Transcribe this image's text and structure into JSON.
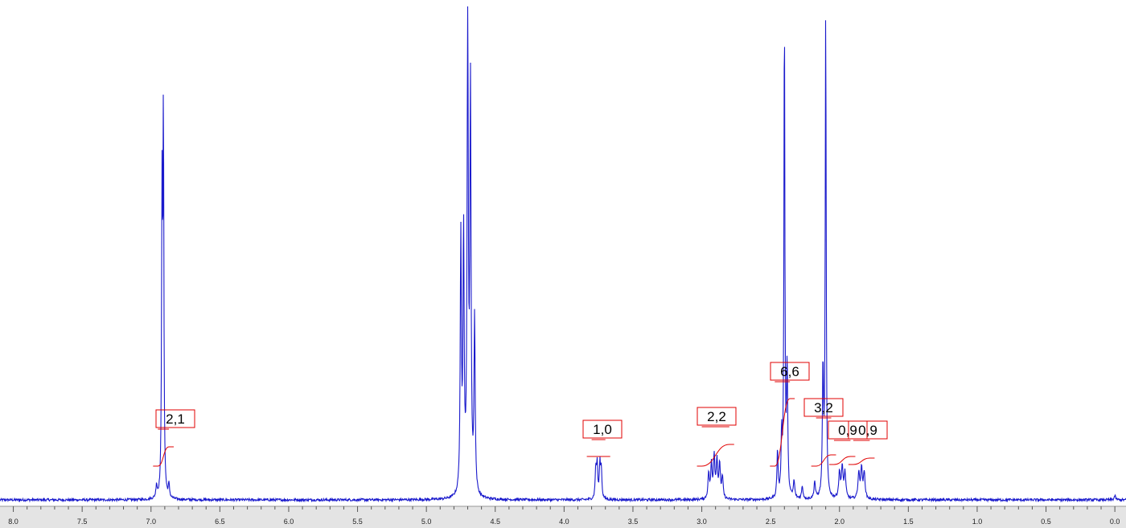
{
  "chart_data": {
    "type": "line",
    "xlim": [
      8.1,
      -0.05
    ],
    "reversed_x_axis": true,
    "grid": false,
    "colors": {
      "spectrum": "#1a1acc",
      "integral": "#e00000",
      "axis_bg": "#e4e4e4"
    },
    "x_ticks": [
      "8.0",
      "7.5",
      "7.0",
      "6.5",
      "6.0",
      "5.5",
      "5.0",
      "4.5",
      "4.0",
      "3.5",
      "3.0",
      "2.5",
      "2.0",
      "1.5",
      "1.0",
      "0.5",
      "0.0"
    ],
    "peaks": [
      {
        "shift": 6.91,
        "height": 0.89,
        "width": 0.004
      },
      {
        "shift": 6.92,
        "height": 0.7,
        "width": 0.004
      },
      {
        "shift": 6.96,
        "height": 0.03,
        "width": 0.005
      },
      {
        "shift": 6.87,
        "height": 0.03,
        "width": 0.005
      },
      {
        "shift": 4.75,
        "height": 0.6,
        "width": 0.005
      },
      {
        "shift": 4.73,
        "height": 0.61,
        "width": 0.005
      },
      {
        "shift": 4.7,
        "height": 1.15,
        "width": 0.005
      },
      {
        "shift": 4.68,
        "height": 0.95,
        "width": 0.005
      },
      {
        "shift": 4.65,
        "height": 0.41,
        "width": 0.005
      },
      {
        "shift": 3.77,
        "height": 0.07,
        "width": 0.005
      },
      {
        "shift": 3.76,
        "height": 0.08,
        "width": 0.005
      },
      {
        "shift": 3.74,
        "height": 0.08,
        "width": 0.005
      },
      {
        "shift": 3.73,
        "height": 0.07,
        "width": 0.005
      },
      {
        "shift": 2.95,
        "height": 0.06,
        "width": 0.006
      },
      {
        "shift": 2.93,
        "height": 0.08,
        "width": 0.006
      },
      {
        "shift": 2.91,
        "height": 0.1,
        "width": 0.006
      },
      {
        "shift": 2.89,
        "height": 0.09,
        "width": 0.006
      },
      {
        "shift": 2.87,
        "height": 0.08,
        "width": 0.006
      },
      {
        "shift": 2.85,
        "height": 0.05,
        "width": 0.006
      },
      {
        "shift": 2.45,
        "height": 0.11,
        "width": 0.005
      },
      {
        "shift": 2.42,
        "height": 0.14,
        "width": 0.005
      },
      {
        "shift": 2.4,
        "height": 1.15,
        "width": 0.004
      },
      {
        "shift": 2.38,
        "height": 0.3,
        "width": 0.005
      },
      {
        "shift": 2.33,
        "height": 0.04,
        "width": 0.006
      },
      {
        "shift": 2.27,
        "height": 0.03,
        "width": 0.006
      },
      {
        "shift": 2.18,
        "height": 0.04,
        "width": 0.006
      },
      {
        "shift": 2.12,
        "height": 0.3,
        "width": 0.005
      },
      {
        "shift": 2.1,
        "height": 1.15,
        "width": 0.004
      },
      {
        "shift": 2.0,
        "height": 0.06,
        "width": 0.007
      },
      {
        "shift": 1.98,
        "height": 0.07,
        "width": 0.007
      },
      {
        "shift": 1.96,
        "height": 0.06,
        "width": 0.007
      },
      {
        "shift": 1.86,
        "height": 0.06,
        "width": 0.007
      },
      {
        "shift": 1.84,
        "height": 0.07,
        "width": 0.007
      },
      {
        "shift": 1.82,
        "height": 0.06,
        "width": 0.007
      },
      {
        "shift": 0.0,
        "height": 0.01,
        "width": 0.006
      }
    ],
    "integrals": [
      {
        "label": "2,1",
        "from": 6.95,
        "to": 6.87
      },
      {
        "label": "1,0",
        "from": 3.8,
        "to": 3.7
      },
      {
        "label": "2,2",
        "from": 3.0,
        "to": 2.8
      },
      {
        "label": "6,6",
        "from": 2.47,
        "to": 2.36
      },
      {
        "label": "3,2",
        "from": 2.17,
        "to": 2.06
      },
      {
        "label": "0,9",
        "from": 2.04,
        "to": 1.92
      },
      {
        "label": "0,9",
        "from": 1.9,
        "to": 1.78
      }
    ]
  }
}
